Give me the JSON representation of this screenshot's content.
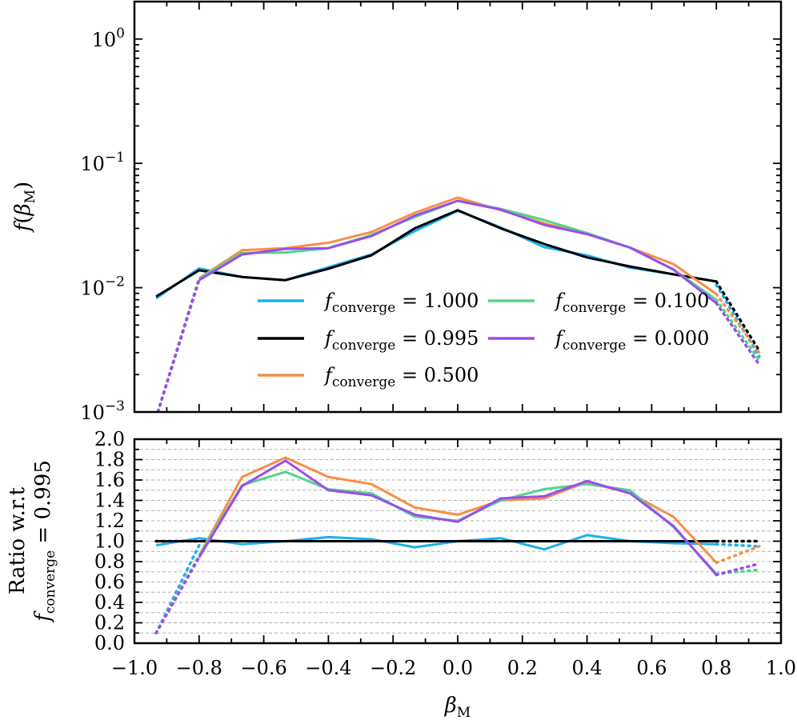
{
  "chart_data": {
    "type": "line",
    "x_solid": [
      -0.933,
      -0.8,
      -0.667,
      -0.533,
      -0.4,
      -0.267,
      -0.133,
      0.0,
      0.133,
      0.267,
      0.4,
      0.533,
      0.667,
      0.8
    ],
    "x_dotted": [
      -0.933,
      -0.8,
      0.8,
      0.933
    ],
    "xlabel_base": "β",
    "xlabel_sub": "M",
    "xlim": [
      -1.0,
      1.0
    ],
    "xticks": [
      -1.0,
      -0.8,
      -0.6,
      -0.4,
      -0.2,
      0.0,
      0.2,
      0.4,
      0.6,
      0.8,
      1.0
    ],
    "xtick_labels": [
      "−1.0",
      "−0.8",
      "−0.6",
      "−0.4",
      "−0.2",
      "0.0",
      "0.2",
      "0.4",
      "0.6",
      "0.8",
      "1.0"
    ],
    "top": {
      "yscale": "log",
      "ylim": [
        0.001,
        2.0
      ],
      "ylabel": "f(βM)",
      "ylabel_f": "f",
      "ylabel_open": "(",
      "ylabel_beta": "β",
      "ylabel_sub": "M",
      "ylabel_close": ")",
      "yticks": [
        {
          "value": 0.001,
          "base": "10",
          "exp": "−3"
        },
        {
          "value": 0.01,
          "base": "10",
          "exp": "−2"
        },
        {
          "value": 0.1,
          "base": "10",
          "exp": "−1"
        },
        {
          "value": 1.0,
          "base": "10",
          "exp": "0"
        }
      ]
    },
    "bottom": {
      "ylim": [
        0.0,
        2.0
      ],
      "ylabel_line1": "Ratio w.r.t",
      "ylabel_line2_f": "f",
      "ylabel_line2_sub": "converge",
      "ylabel_line2_rest": " = 0.995",
      "yticks": [
        0.0,
        0.2,
        0.4,
        0.6,
        0.8,
        1.0,
        1.2,
        1.4,
        1.6,
        1.8,
        2.0
      ],
      "ytick_labels": [
        "0.0",
        "0.2",
        "0.4",
        "0.6",
        "0.8",
        "1.0",
        "1.2",
        "1.4",
        "1.6",
        "1.8",
        "2.0"
      ],
      "grid": true
    },
    "legend_position": "lower-center (two columns)",
    "series": [
      {
        "name": "f_converge = 1.000",
        "f": "f",
        "sub": "converge",
        "rest": " = 1.000",
        "color": "#1ab0f0",
        "top_values": [
          0.0082,
          0.0143,
          0.0122,
          0.0115,
          0.0146,
          0.0185,
          0.0285,
          0.0415,
          0.0305,
          0.0212,
          0.0182,
          0.0145,
          0.0128,
          0.0112
        ],
        "top_dotted": [
          0.0009,
          0.0119,
          0.0105,
          0.0028
        ],
        "ratio_values": [
          0.96,
          1.03,
          0.97,
          1.0,
          1.04,
          1.02,
          0.94,
          1.0,
          1.03,
          0.92,
          1.06,
          1.0,
          0.98,
          0.97
        ],
        "ratio_dotted": [
          0.1,
          0.96,
          0.97,
          0.95
        ]
      },
      {
        "name": "f_converge = 0.995",
        "f": "f",
        "sub": "converge",
        "rest": " = 0.995",
        "color": "#000000",
        "top_values": [
          0.0085,
          0.0138,
          0.0122,
          0.0115,
          0.0142,
          0.0182,
          0.03,
          0.042,
          0.03,
          0.0225,
          0.0175,
          0.0148,
          0.0128,
          0.0112
        ],
        "top_dotted": [
          0.0009,
          0.0119,
          0.0112,
          0.0031
        ],
        "ratio_values": [
          1.0,
          1.0,
          1.0,
          1.0,
          1.0,
          1.0,
          1.0,
          1.0,
          1.0,
          1.0,
          1.0,
          1.0,
          1.0,
          1.0
        ],
        "ratio_dotted": [
          1.0,
          1.0,
          1.0,
          1.0
        ]
      },
      {
        "name": "f_converge = 0.500",
        "f": "f",
        "sub": "converge",
        "rest": " = 0.500",
        "color": "#f98e45",
        "top_values": [
          0.0009,
          0.0119,
          0.02,
          0.0208,
          0.023,
          0.028,
          0.04,
          0.053,
          0.042,
          0.033,
          0.027,
          0.021,
          0.0155,
          0.0089
        ],
        "top_dotted": [
          0.0009,
          0.0119,
          0.0089,
          0.003
        ],
        "ratio_values": [
          0.1,
          0.86,
          1.63,
          1.82,
          1.63,
          1.56,
          1.33,
          1.26,
          1.4,
          1.42,
          1.58,
          1.47,
          1.24,
          0.79
        ],
        "ratio_dotted": [
          0.1,
          0.86,
          0.79,
          0.95
        ]
      },
      {
        "name": "f_converge = 0.100",
        "f": "f",
        "sub": "converge",
        "rest": " = 0.100",
        "color": "#50d68a",
        "top_values": [
          0.0009,
          0.0119,
          0.019,
          0.0192,
          0.0208,
          0.0265,
          0.037,
          0.05,
          0.043,
          0.035,
          0.0275,
          0.021,
          0.014,
          0.008
        ],
        "top_dotted": [
          0.0009,
          0.0119,
          0.008,
          0.0026
        ],
        "ratio_values": [
          0.1,
          0.86,
          1.55,
          1.68,
          1.51,
          1.47,
          1.24,
          1.2,
          1.4,
          1.51,
          1.56,
          1.5,
          1.14,
          0.68
        ],
        "ratio_dotted": [
          0.1,
          0.86,
          0.68,
          0.72
        ]
      },
      {
        "name": "f_converge = 0.000",
        "f": "f",
        "sub": "converge",
        "rest": " = 0.000",
        "color": "#9c4cf0",
        "top_values": [
          0.0009,
          0.0115,
          0.0185,
          0.0205,
          0.0208,
          0.026,
          0.038,
          0.05,
          0.0425,
          0.032,
          0.027,
          0.021,
          0.014,
          0.0075
        ],
        "top_dotted": [
          0.0009,
          0.0115,
          0.0075,
          0.0024
        ],
        "ratio_values": [
          0.1,
          0.84,
          1.54,
          1.79,
          1.5,
          1.45,
          1.26,
          1.19,
          1.42,
          1.44,
          1.59,
          1.47,
          1.15,
          0.67
        ],
        "ratio_dotted": [
          0.1,
          0.84,
          0.67,
          0.78
        ]
      }
    ]
  }
}
